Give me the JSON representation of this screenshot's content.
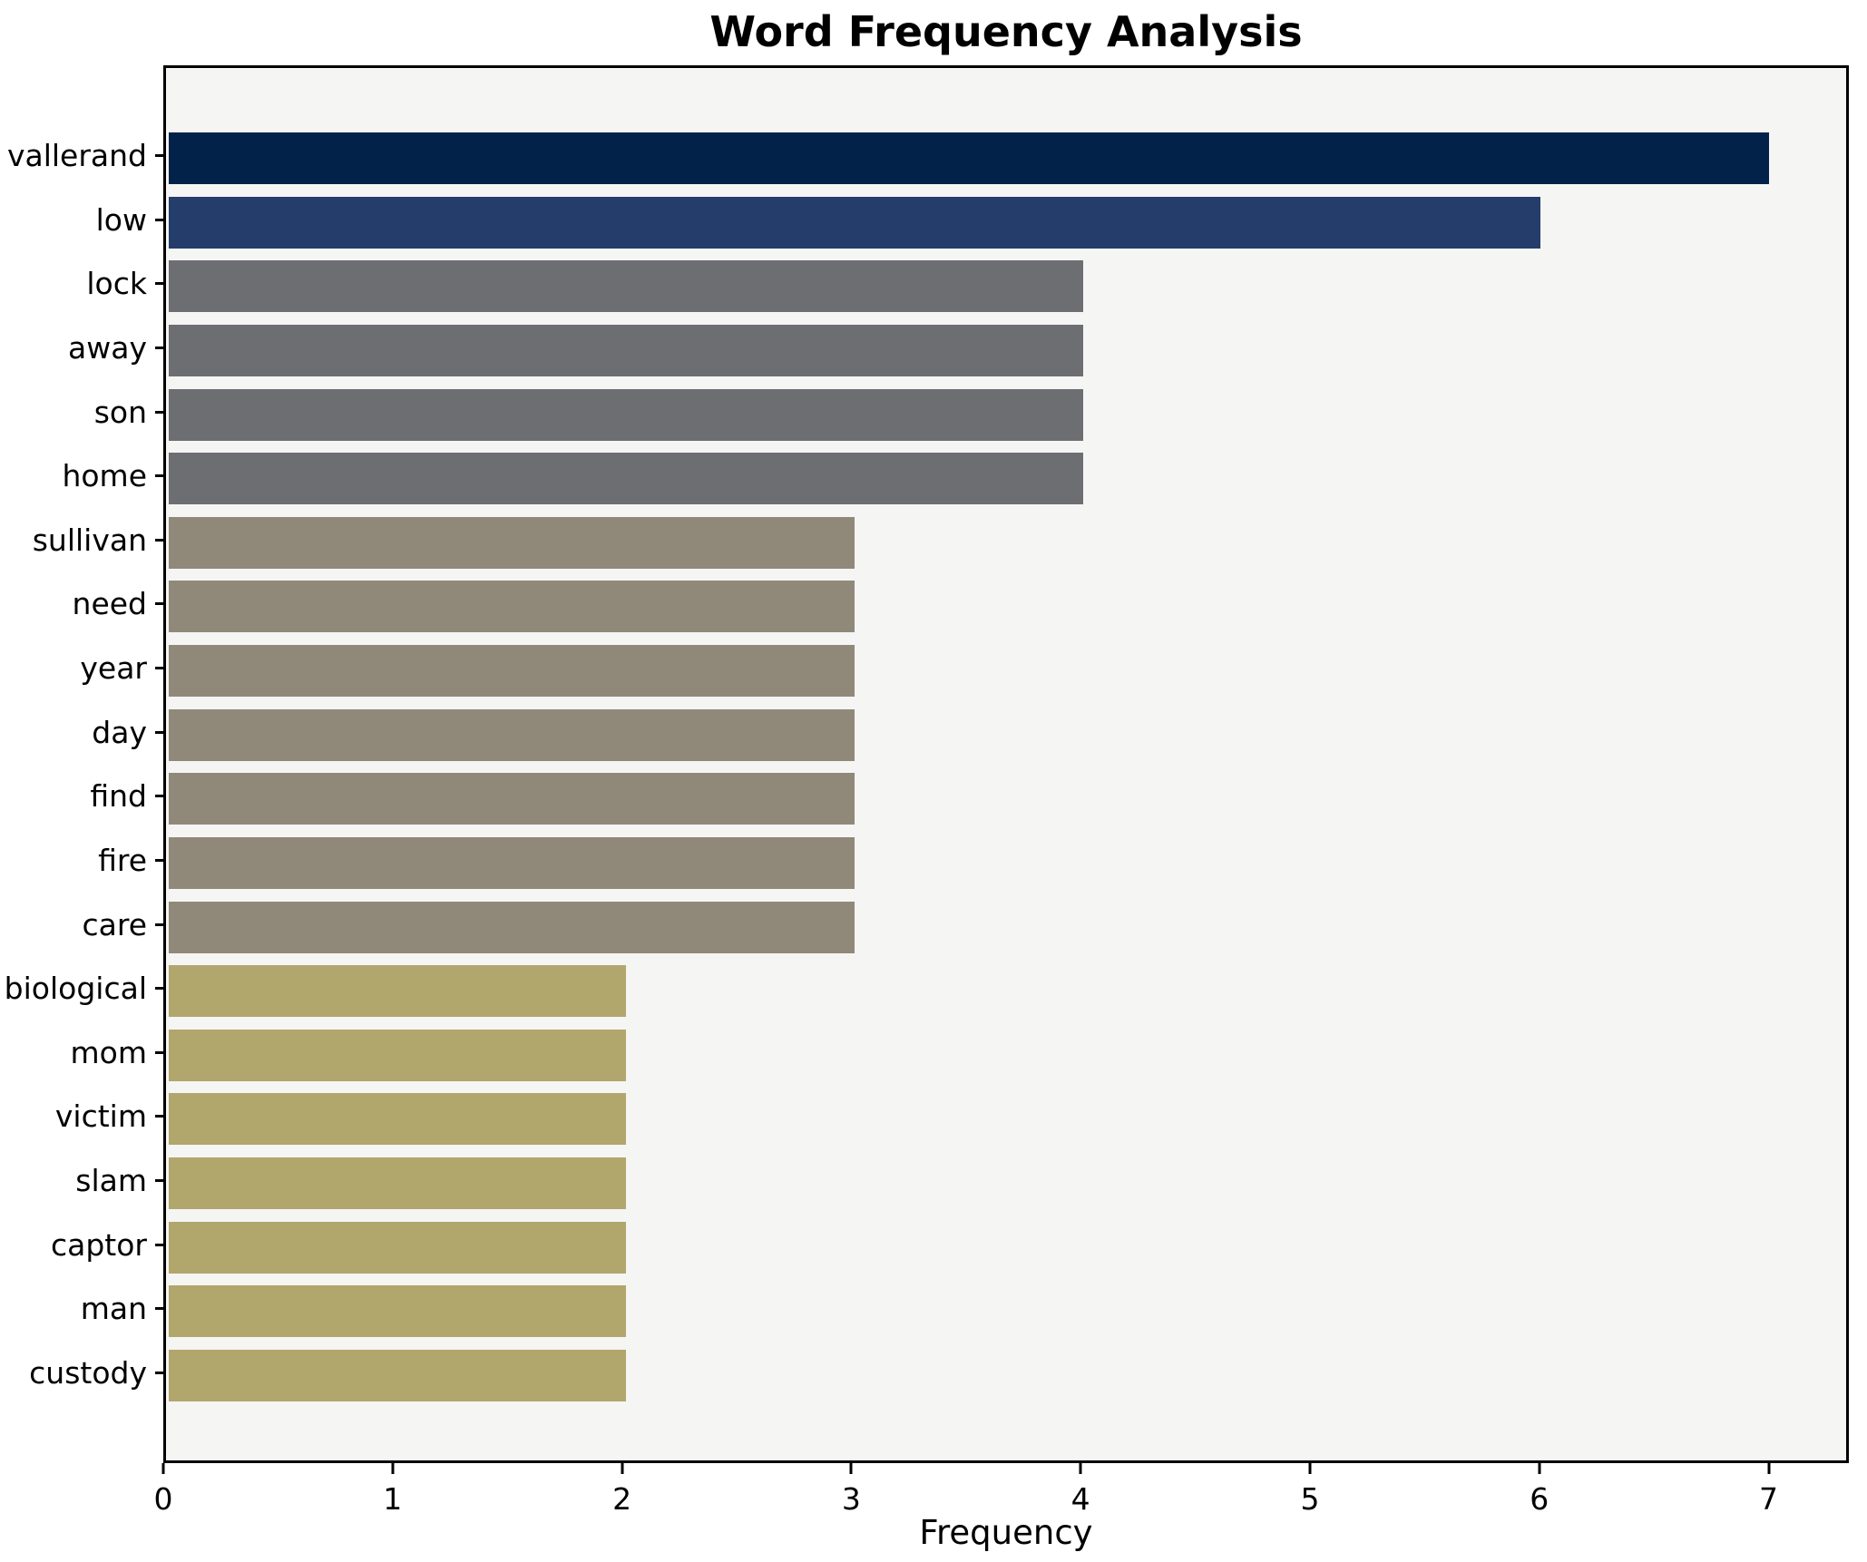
{
  "title": "Word Frequency Analysis",
  "chart_data": {
    "type": "bar",
    "orientation": "horizontal",
    "title": "Word Frequency Analysis",
    "xlabel": "Frequency",
    "ylabel": "",
    "categories": [
      "vallerand",
      "low",
      "lock",
      "away",
      "son",
      "home",
      "sullivan",
      "need",
      "year",
      "day",
      "find",
      "fire",
      "care",
      "biological",
      "mom",
      "victim",
      "slam",
      "captor",
      "man",
      "custody"
    ],
    "values": [
      7,
      6,
      4,
      4,
      4,
      4,
      3,
      3,
      3,
      3,
      3,
      3,
      3,
      2,
      2,
      2,
      2,
      2,
      2,
      2
    ],
    "bar_colors": [
      "#032249",
      "#243d6b",
      "#6d6e71",
      "#6d6e71",
      "#6d6e71",
      "#6d6e71",
      "#90897a",
      "#90897a",
      "#90897a",
      "#90897a",
      "#90897a",
      "#90897a",
      "#90897a",
      "#b1a66c",
      "#b1a66c",
      "#b1a66c",
      "#b1a66c",
      "#b1a66c",
      "#b1a66c",
      "#b1a66c"
    ],
    "xlim": [
      0,
      7.35
    ],
    "xticks": [
      0,
      1,
      2,
      3,
      4,
      5,
      6,
      7
    ],
    "grid": false,
    "legend": false,
    "plot_bg": "#f5f5f4",
    "figure_bg": "#ffffff",
    "spine_color": "#000000"
  }
}
